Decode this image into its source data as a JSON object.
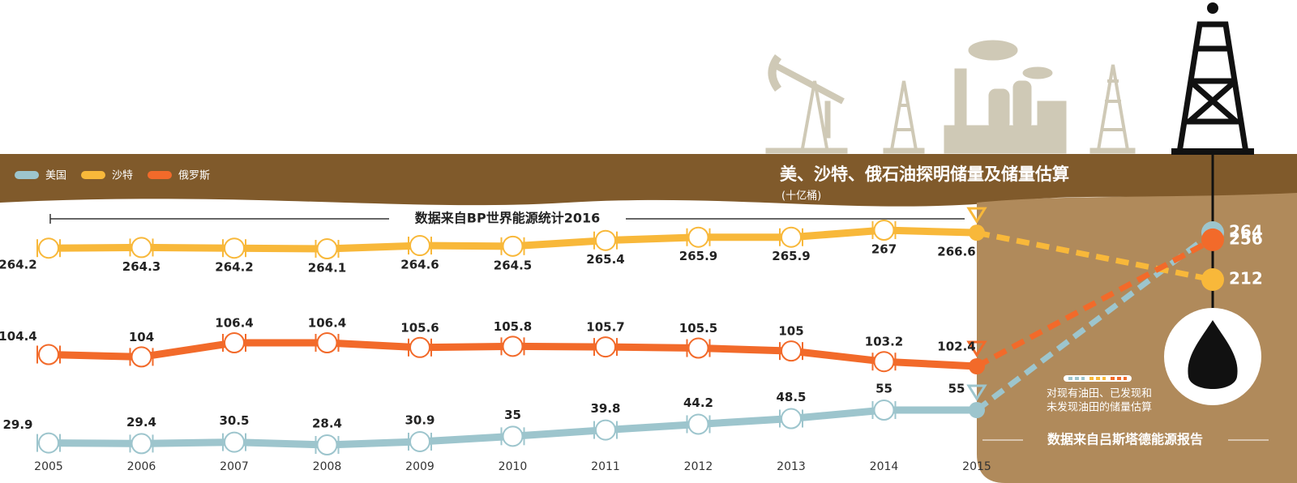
{
  "chart_data": {
    "type": "line",
    "title": "美、沙特、俄石油探明储量及储量估算",
    "subtitle": "(十亿桶)",
    "source_left": "数据来自BP世界能源统计2016",
    "source_right": "数据来自吕斯塔德能源报告",
    "estimate_note": [
      "对现有油田、已发现和",
      "未发现油田的储量估算"
    ],
    "categories": [
      "2005",
      "2006",
      "2007",
      "2008",
      "2009",
      "2010",
      "2011",
      "2012",
      "2013",
      "2014",
      "2015"
    ],
    "series": [
      {
        "name": "美国",
        "color": "#9dc5cd",
        "values": [
          29.9,
          29.4,
          30.5,
          28.4,
          30.9,
          35,
          39.8,
          44.2,
          48.5,
          55,
          55
        ],
        "estimate": 264
      },
      {
        "name": "沙特",
        "color": "#f8b83a",
        "values": [
          264.2,
          264.3,
          264.2,
          264.1,
          264.6,
          264.5,
          265.4,
          265.9,
          265.9,
          267,
          266.6
        ],
        "estimate": 212
      },
      {
        "name": "俄罗斯",
        "color": "#f26a2a",
        "values": [
          104.4,
          104,
          106.4,
          106.4,
          105.6,
          105.8,
          105.7,
          105.5,
          105,
          103.2,
          102.4
        ],
        "estimate": 256
      }
    ]
  }
}
